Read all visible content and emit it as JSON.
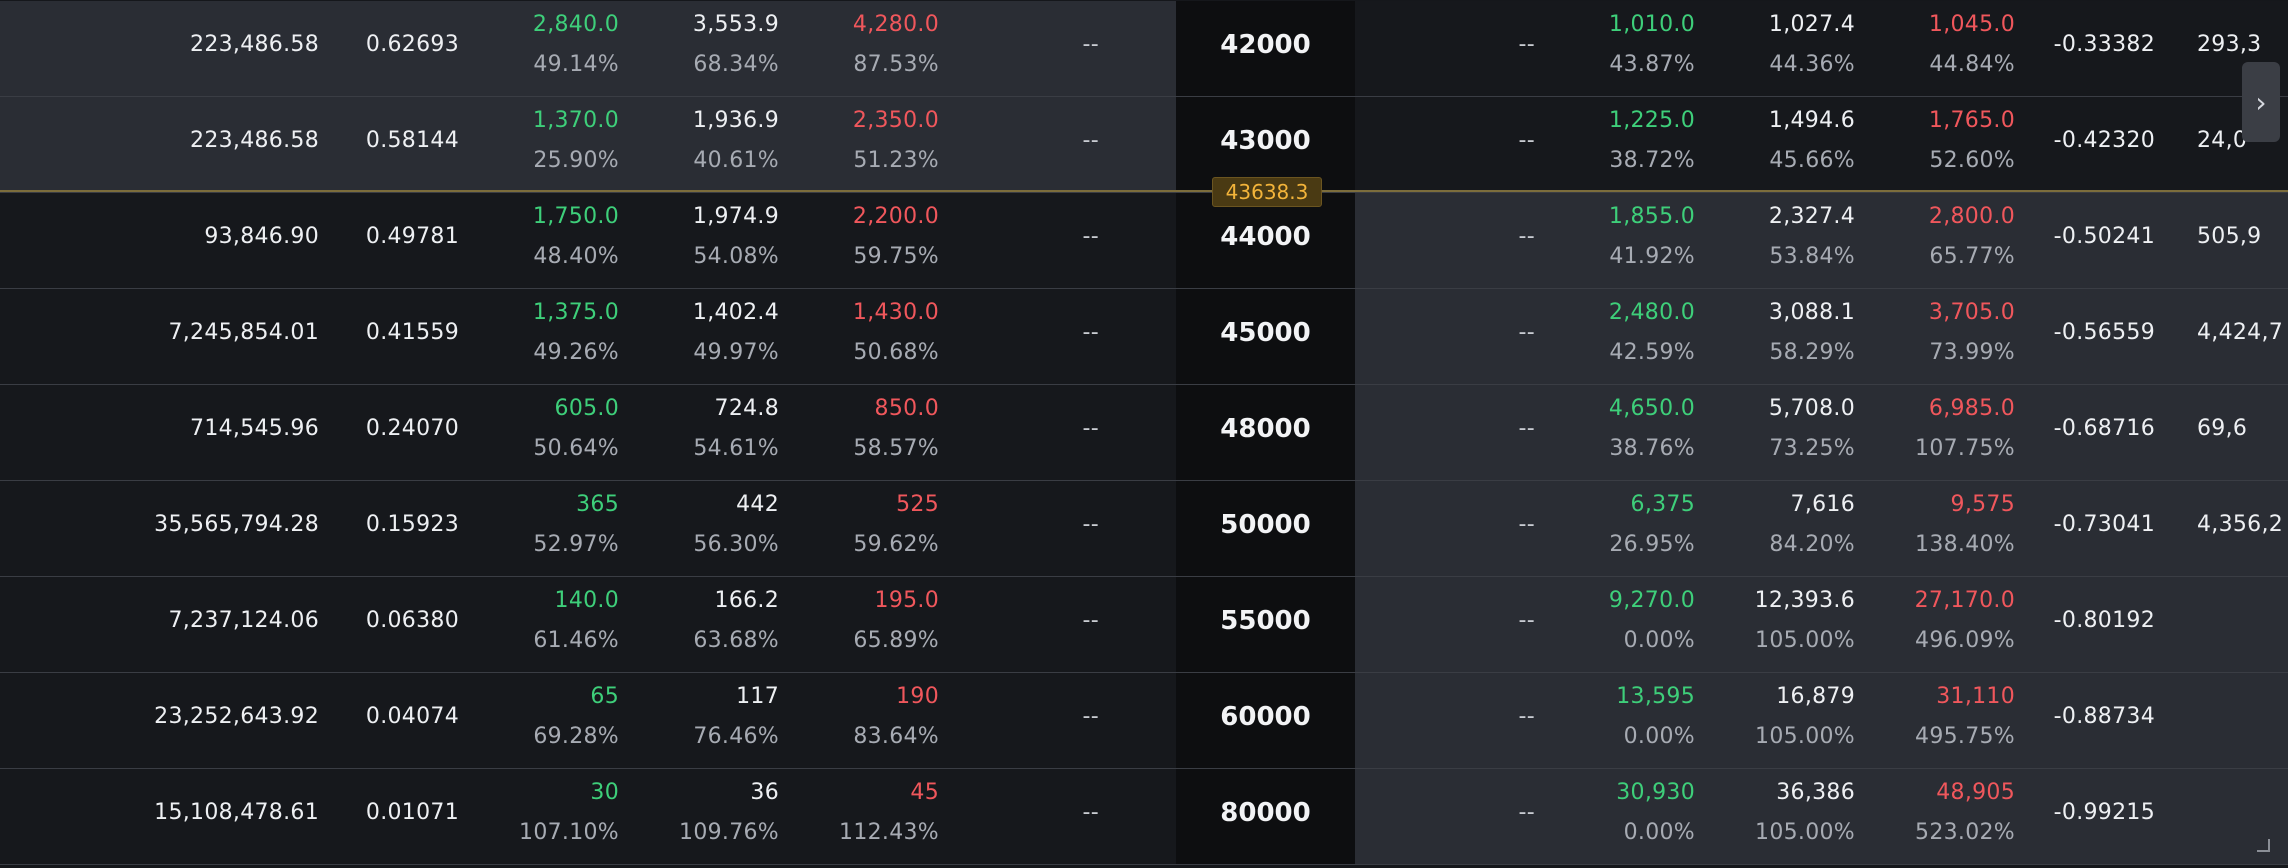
{
  "atm": {
    "price": "43638.3"
  },
  "rows": [
    {
      "strike": "42000",
      "call_col1": "223,486.58",
      "call_col2": "0.62693",
      "call_bid": "2,840.0",
      "call_bid_iv": "49.14%",
      "call_mark": "3,553.9",
      "call_mark_iv": "68.34%",
      "call_ask": "4,280.0",
      "call_ask_iv": "87.53%",
      "call_dash": "--",
      "put_dash": "--",
      "put_bid": "1,010.0",
      "put_bid_iv": "43.87%",
      "put_mark": "1,027.4",
      "put_mark_iv": "44.36%",
      "put_ask": "1,045.0",
      "put_ask_iv": "44.84%",
      "put_col1": "-0.33382",
      "put_col2": "293,3",
      "call_state": "itm",
      "put_state": "otm"
    },
    {
      "strike": "43000",
      "call_col1": "223,486.58",
      "call_col2": "0.58144",
      "call_bid": "1,370.0",
      "call_bid_iv": "25.90%",
      "call_mark": "1,936.9",
      "call_mark_iv": "40.61%",
      "call_ask": "2,350.0",
      "call_ask_iv": "51.23%",
      "call_dash": "--",
      "put_dash": "--",
      "put_bid": "1,225.0",
      "put_bid_iv": "38.72%",
      "put_mark": "1,494.6",
      "put_mark_iv": "45.66%",
      "put_ask": "1,765.0",
      "put_ask_iv": "52.60%",
      "put_col1": "-0.42320",
      "put_col2": "24,0",
      "call_state": "itm",
      "put_state": "otm"
    },
    {
      "strike": "44000",
      "call_col1": "93,846.90",
      "call_col2": "0.49781",
      "call_bid": "1,750.0",
      "call_bid_iv": "48.40%",
      "call_mark": "1,974.9",
      "call_mark_iv": "54.08%",
      "call_ask": "2,200.0",
      "call_ask_iv": "59.75%",
      "call_dash": "--",
      "put_dash": "--",
      "put_bid": "1,855.0",
      "put_bid_iv": "41.92%",
      "put_mark": "2,327.4",
      "put_mark_iv": "53.84%",
      "put_ask": "2,800.0",
      "put_ask_iv": "65.77%",
      "put_col1": "-0.50241",
      "put_col2": "505,9",
      "call_state": "otm",
      "put_state": "itm"
    },
    {
      "strike": "45000",
      "call_col1": "7,245,854.01",
      "call_col2": "0.41559",
      "call_bid": "1,375.0",
      "call_bid_iv": "49.26%",
      "call_mark": "1,402.4",
      "call_mark_iv": "49.97%",
      "call_ask": "1,430.0",
      "call_ask_iv": "50.68%",
      "call_dash": "--",
      "put_dash": "--",
      "put_bid": "2,480.0",
      "put_bid_iv": "42.59%",
      "put_mark": "3,088.1",
      "put_mark_iv": "58.29%",
      "put_ask": "3,705.0",
      "put_ask_iv": "73.99%",
      "put_col1": "-0.56559",
      "put_col2": "4,424,7",
      "call_state": "otm",
      "put_state": "itm"
    },
    {
      "strike": "48000",
      "call_col1": "714,545.96",
      "call_col2": "0.24070",
      "call_bid": "605.0",
      "call_bid_iv": "50.64%",
      "call_mark": "724.8",
      "call_mark_iv": "54.61%",
      "call_ask": "850.0",
      "call_ask_iv": "58.57%",
      "call_dash": "--",
      "put_dash": "--",
      "put_bid": "4,650.0",
      "put_bid_iv": "38.76%",
      "put_mark": "5,708.0",
      "put_mark_iv": "73.25%",
      "put_ask": "6,985.0",
      "put_ask_iv": "107.75%",
      "put_col1": "-0.68716",
      "put_col2": "69,6",
      "call_state": "otm",
      "put_state": "itm"
    },
    {
      "strike": "50000",
      "call_col1": "35,565,794.28",
      "call_col2": "0.15923",
      "call_bid": "365",
      "call_bid_iv": "52.97%",
      "call_mark": "442",
      "call_mark_iv": "56.30%",
      "call_ask": "525",
      "call_ask_iv": "59.62%",
      "call_dash": "--",
      "put_dash": "--",
      "put_bid": "6,375",
      "put_bid_iv": "26.95%",
      "put_mark": "7,616",
      "put_mark_iv": "84.20%",
      "put_ask": "9,575",
      "put_ask_iv": "138.40%",
      "put_col1": "-0.73041",
      "put_col2": "4,356,2",
      "call_state": "otm",
      "put_state": "itm"
    },
    {
      "strike": "55000",
      "call_col1": "7,237,124.06",
      "call_col2": "0.06380",
      "call_bid": "140.0",
      "call_bid_iv": "61.46%",
      "call_mark": "166.2",
      "call_mark_iv": "63.68%",
      "call_ask": "195.0",
      "call_ask_iv": "65.89%",
      "call_dash": "--",
      "put_dash": "--",
      "put_bid": "9,270.0",
      "put_bid_iv": "0.00%",
      "put_mark": "12,393.6",
      "put_mark_iv": "105.00%",
      "put_ask": "27,170.0",
      "put_ask_iv": "496.09%",
      "put_col1": "-0.80192",
      "put_col2": "",
      "call_state": "otm",
      "put_state": "itm"
    },
    {
      "strike": "60000",
      "call_col1": "23,252,643.92",
      "call_col2": "0.04074",
      "call_bid": "65",
      "call_bid_iv": "69.28%",
      "call_mark": "117",
      "call_mark_iv": "76.46%",
      "call_ask": "190",
      "call_ask_iv": "83.64%",
      "call_dash": "--",
      "put_dash": "--",
      "put_bid": "13,595",
      "put_bid_iv": "0.00%",
      "put_mark": "16,879",
      "put_mark_iv": "105.00%",
      "put_ask": "31,110",
      "put_ask_iv": "495.75%",
      "put_col1": "-0.88734",
      "put_col2": "",
      "call_state": "otm",
      "put_state": "itm"
    },
    {
      "strike": "80000",
      "call_col1": "15,108,478.61",
      "call_col2": "0.01071",
      "call_bid": "30",
      "call_bid_iv": "107.10%",
      "call_mark": "36",
      "call_mark_iv": "109.76%",
      "call_ask": "45",
      "call_ask_iv": "112.43%",
      "call_dash": "--",
      "put_dash": "--",
      "put_bid": "30,930",
      "put_bid_iv": "0.00%",
      "put_mark": "36,386",
      "put_mark_iv": "105.00%",
      "put_ask": "48,905",
      "put_ask_iv": "523.02%",
      "put_col1": "-0.99215",
      "put_col2": "",
      "call_state": "otm",
      "put_state": "itm"
    }
  ],
  "scroll_icon": "chevron-right-icon",
  "colors": {
    "bid": "#3ecf7a",
    "ask": "#f0575c",
    "atm_badge": "#f3b43a",
    "itm_bg": "#2a2d34",
    "otm_bg": "#16181c"
  }
}
